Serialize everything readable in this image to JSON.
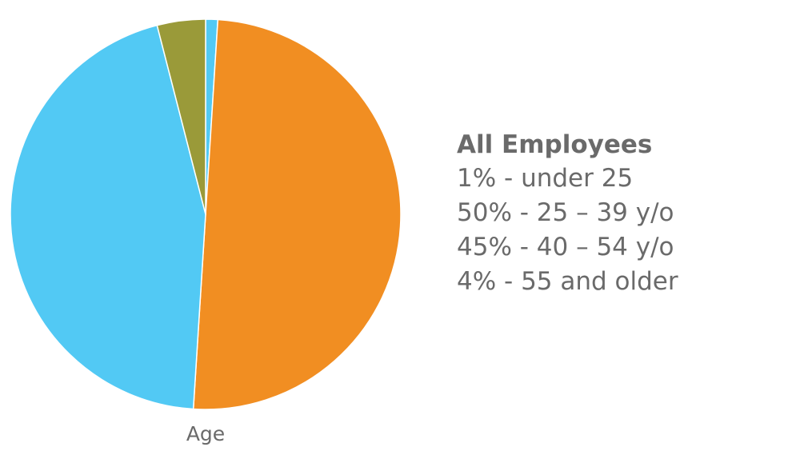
{
  "chart_data": {
    "type": "pie",
    "title": "",
    "caption": "Age",
    "legend_title": "All Employees",
    "legend_placement": "right",
    "slices": [
      {
        "label": "under 25",
        "value": 1,
        "color": "#52c9f4"
      },
      {
        "label": "25 – 39 y/o",
        "value": 50,
        "color": "#f18e22"
      },
      {
        "label": "40 – 54 y/o",
        "value": 45,
        "color": "#52c9f4"
      },
      {
        "label": "55 and older",
        "value": 4,
        "color": "#9a9a39"
      }
    ],
    "legend_lines": [
      "1% - under 25",
      "50% - 25 – 39 y/o",
      "45% - 40 – 54 y/o",
      "4% - 55 and older"
    ]
  }
}
